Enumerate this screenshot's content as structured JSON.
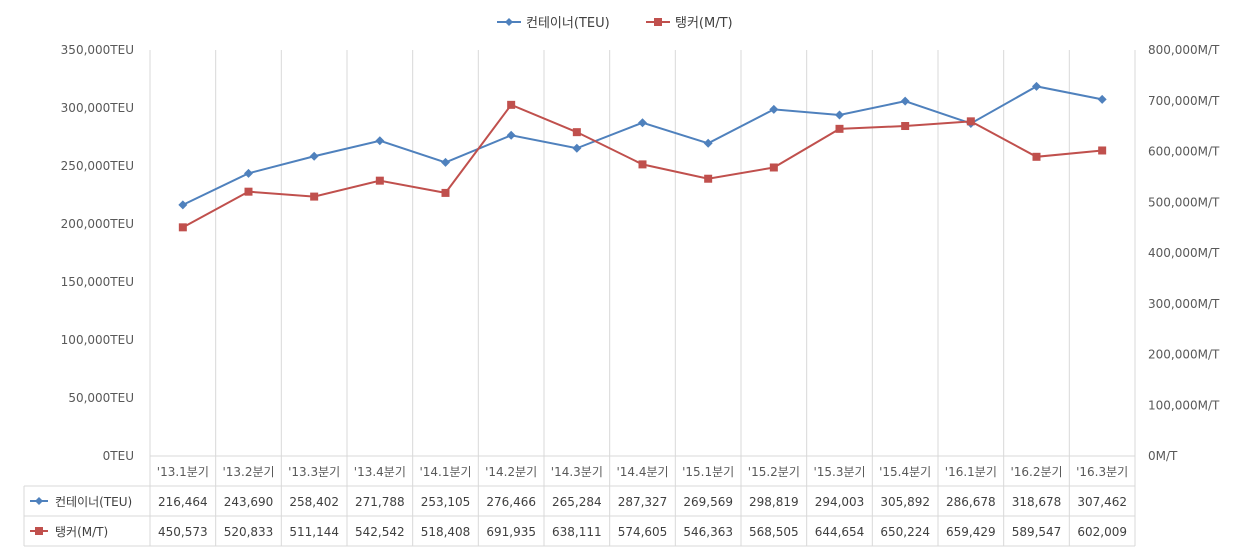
{
  "chart_data": {
    "type": "line",
    "title": "",
    "categories": [
      "'13.1분기",
      "'13.2분기",
      "'13.3분기",
      "'13.4분기",
      "'14.1분기",
      "'14.2분기",
      "'14.3분기",
      "'14.4분기",
      "'15.1분기",
      "'15.2분기",
      "'15.3분기",
      "'15.4분기",
      "'16.1분기",
      "'16.2분기",
      "'16.3분기"
    ],
    "series": [
      {
        "name": "컨테이너(TEU)",
        "axis": "left",
        "color": "#4f81bd",
        "marker": "diamond",
        "values": [
          216464,
          243690,
          258402,
          271788,
          253105,
          276466,
          265284,
          287327,
          269569,
          298819,
          294003,
          305892,
          286678,
          318678,
          307462
        ],
        "labels": [
          "216,464",
          "243,690",
          "258,402",
          "271,788",
          "253,105",
          "276,466",
          "265,284",
          "287,327",
          "269,569",
          "298,819",
          "294,003",
          "305,892",
          "286,678",
          "318,678",
          "307,462"
        ]
      },
      {
        "name": "탱커(M/T)",
        "axis": "right",
        "color": "#c0504d",
        "marker": "square",
        "values": [
          450573,
          520833,
          511144,
          542542,
          518408,
          691935,
          638111,
          574605,
          546363,
          568505,
          644654,
          650224,
          659429,
          589547,
          602009
        ],
        "labels": [
          "450,573",
          "520,833",
          "511,144",
          "542,542",
          "518,408",
          "691,935",
          "638,111",
          "574,605",
          "546,363",
          "568,505",
          "644,654",
          "650,224",
          "659,429",
          "589,547",
          "602,009"
        ]
      }
    ],
    "y_left": {
      "range": [
        0,
        350000
      ],
      "ticks": [
        "0TEU",
        "50,000TEU",
        "100,000TEU",
        "150,000TEU",
        "200,000TEU",
        "250,000TEU",
        "300,000TEU",
        "350,000TEU"
      ]
    },
    "y_right": {
      "range": [
        0,
        800000
      ],
      "ticks": [
        "0M/T",
        "100,000M/T",
        "200,000M/T",
        "300,000M/T",
        "400,000M/T",
        "500,000M/T",
        "600,000M/T",
        "700,000M/T",
        "800,000M/T"
      ]
    },
    "legend": {
      "position": "top-center",
      "items": [
        "컨테이너(TEU)",
        "탱커(M/T)"
      ]
    },
    "grid": {
      "vertical": true,
      "horizontal": false
    },
    "data_table": true
  }
}
